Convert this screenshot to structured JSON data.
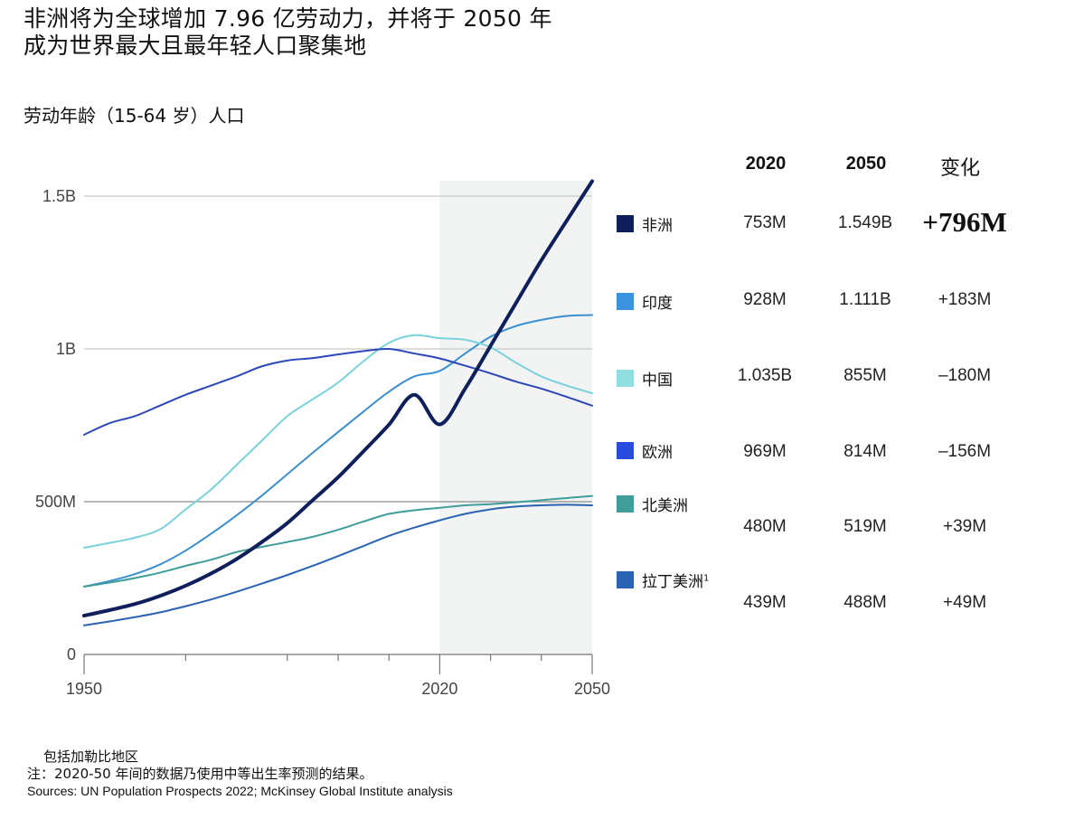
{
  "header": {
    "title_line1": "非洲将为全球增加 7.96 亿劳动力，并将于 2050 年",
    "title_line2": "成为世界最大且最年轻人口聚集地",
    "subtitle": "劳动年龄（15-64 岁）人口"
  },
  "table": {
    "col_2020": "2020",
    "col_2050": "2050",
    "col_change": "变化",
    "rows": [
      {
        "region": "非洲",
        "footnote": "",
        "color": "#0f1f5c",
        "v2020": "753M",
        "v2050": "1.549B",
        "change": "+796M"
      },
      {
        "region": "印度",
        "footnote": "",
        "color": "#3b93e0",
        "v2020": "928M",
        "v2050": "1.111B",
        "change": "+183M"
      },
      {
        "region": "中国",
        "footnote": "",
        "color": "#8fdfe0",
        "v2020": "1.035B",
        "v2050": "855M",
        "change": "–180M"
      },
      {
        "region": "欧洲",
        "footnote": "",
        "color": "#2a4be0",
        "v2020": "969M",
        "v2050": "814M",
        "change": "–156M"
      },
      {
        "region": "北美洲",
        "footnote": "",
        "color": "#3f9e99",
        "v2020": "480M",
        "v2050": "519M",
        "change": "+39M"
      },
      {
        "region": "拉丁美洲",
        "footnote": "1",
        "color": "#2a62b4",
        "v2020": "439M",
        "v2050": "488M",
        "change": "+49M"
      }
    ]
  },
  "footnotes": {
    "note1": "包括加勒比地区",
    "note2": "注：2020-50 年间的数据乃使用中等出生率预测的结果。",
    "sources": "Sources: UN Population Prospects 2022; McKinsey Global Institute analysis"
  },
  "chart_data": {
    "type": "line",
    "title": "劳动年龄（15-64 岁）人口",
    "xlabel": "",
    "ylabel": "",
    "xlim": [
      1950,
      2050
    ],
    "ylim": [
      0,
      1550
    ],
    "y_unit": "millions",
    "x_ticks": [
      1950,
      1970,
      1990,
      2000,
      2010,
      2020,
      2030,
      2040,
      2050
    ],
    "x_tick_labels": [
      {
        "value": 1950,
        "label": "1950"
      },
      {
        "value": 2020,
        "label": "2020"
      },
      {
        "value": 2050,
        "label": "2050"
      }
    ],
    "y_ticks": [
      {
        "value": 0,
        "label": "0"
      },
      {
        "value": 500,
        "label": "500M"
      },
      {
        "value": 1000,
        "label": "1B"
      },
      {
        "value": 1500,
        "label": "1.5B"
      }
    ],
    "grid": "horizontal",
    "projection_shaded_from": 2020,
    "legend": "right",
    "x": [
      1950,
      1955,
      1960,
      1965,
      1970,
      1975,
      1980,
      1985,
      1990,
      1995,
      2000,
      2005,
      2010,
      2015,
      2020,
      2025,
      2030,
      2035,
      2040,
      2045,
      2050
    ],
    "series": [
      {
        "name": "非洲",
        "color": "#0f1f5c",
        "width": 4,
        "values": [
          127,
          145,
          165,
          192,
          225,
          265,
          312,
          368,
          430,
          505,
          580,
          665,
          752,
          850,
          753,
          870,
          1010,
          1150,
          1290,
          1420,
          1549
        ]
      },
      {
        "name": "印度",
        "color": "#3a8fd0",
        "width": 2,
        "values": [
          222,
          240,
          263,
          295,
          340,
          395,
          455,
          520,
          590,
          660,
          728,
          795,
          860,
          910,
          928,
          985,
          1040,
          1075,
          1095,
          1108,
          1111
        ]
      },
      {
        "name": "中国",
        "color": "#7ad3dc",
        "width": 2,
        "values": [
          349,
          365,
          382,
          410,
          475,
          540,
          620,
          700,
          780,
          835,
          890,
          960,
          1020,
          1045,
          1035,
          1030,
          1005,
          955,
          910,
          880,
          855
        ]
      },
      {
        "name": "欧洲",
        "color": "#2b47b8",
        "width": 2,
        "values": [
          719,
          757,
          780,
          815,
          850,
          880,
          910,
          943,
          962,
          970,
          982,
          993,
          1000,
          985,
          969,
          945,
          920,
          893,
          870,
          843,
          814
        ]
      },
      {
        "name": "北美洲",
        "color": "#3f9e99",
        "width": 2,
        "values": [
          222,
          235,
          250,
          268,
          290,
          310,
          335,
          352,
          368,
          385,
          408,
          435,
          460,
          472,
          480,
          488,
          492,
          498,
          505,
          512,
          519
        ]
      },
      {
        "name": "拉丁美洲",
        "color": "#2a62b4",
        "width": 2,
        "values": [
          95,
          108,
          122,
          138,
          158,
          180,
          205,
          232,
          260,
          290,
          322,
          355,
          388,
          415,
          439,
          460,
          475,
          484,
          488,
          490,
          488
        ]
      }
    ]
  }
}
